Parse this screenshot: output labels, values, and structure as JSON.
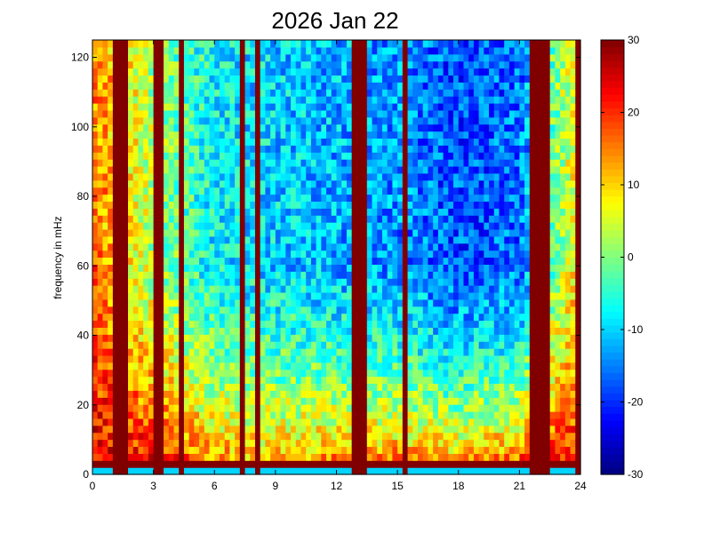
{
  "chart_data": {
    "type": "heatmap",
    "title": "2026 Jan 22",
    "xlabel": "",
    "ylabel": "frequency in mHz",
    "xlim": [
      0,
      24
    ],
    "ylim": [
      0,
      125
    ],
    "x_ticks": [
      0,
      3,
      6,
      9,
      12,
      15,
      18,
      21,
      24
    ],
    "y_ticks": [
      0,
      20,
      40,
      60,
      80,
      100,
      120
    ],
    "colorbar": {
      "range": [
        -30,
        30
      ],
      "ticks": [
        -30,
        -20,
        -10,
        0,
        10,
        20,
        30
      ],
      "colormap": "jet"
    },
    "grid": false,
    "time_columns": 96,
    "frequency_rows": 62,
    "saturated_bands_hours": [
      [
        1.1,
        1.8
      ],
      [
        2.9,
        3.6
      ],
      [
        4.3,
        4.4
      ],
      [
        7.3,
        7.6
      ],
      [
        7.9,
        8.3
      ],
      [
        12.8,
        13.0
      ],
      [
        13.1,
        13.6
      ],
      [
        15.2,
        15.6
      ],
      [
        20.9,
        21.1
      ],
      [
        21.5,
        22.5
      ],
      [
        23.8,
        24.0
      ]
    ],
    "low_frequency_power_by_hour": [
      {
        "hour": 0,
        "db": 28
      },
      {
        "hour": 3,
        "db": 30
      },
      {
        "hour": 6,
        "db": 22
      },
      {
        "hour": 9,
        "db": 20
      },
      {
        "hour": 12,
        "db": 24
      },
      {
        "hour": 15,
        "db": 26
      },
      {
        "hour": 18,
        "db": 24
      },
      {
        "hour": 21,
        "db": 30
      },
      {
        "hour": 24,
        "db": 28
      }
    ],
    "high_frequency_power_by_hour": [
      {
        "hour": 0,
        "db": 16
      },
      {
        "hour": 3,
        "db": 2
      },
      {
        "hour": 6,
        "db": -8
      },
      {
        "hour": 9,
        "db": -10
      },
      {
        "hour": 12,
        "db": -12
      },
      {
        "hour": 15,
        "db": -14
      },
      {
        "hour": 18,
        "db": -18
      },
      {
        "hour": 21,
        "db": -16
      },
      {
        "hour": 24,
        "db": 10
      }
    ]
  }
}
